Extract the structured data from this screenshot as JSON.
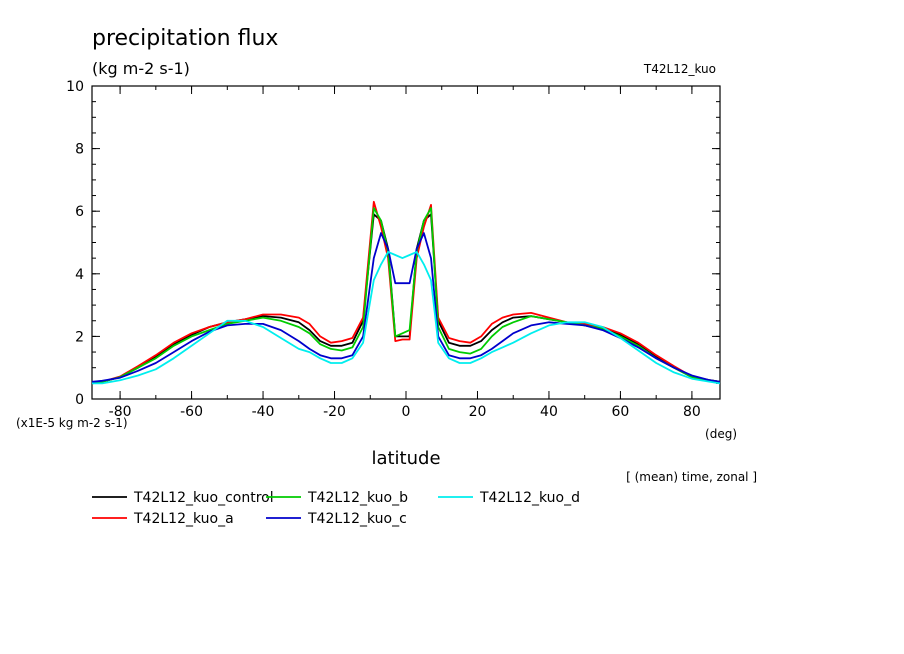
{
  "chart_data": {
    "type": "line",
    "title": "precipitation flux",
    "units": "(kg m-2 s-1)",
    "experiment": "T42L12_kuo",
    "xlabel": "latitude",
    "xunit": "(deg)",
    "ylabel": "(x1E-5 kg m-2 s-1)",
    "note": "[ (mean) time, zonal ]",
    "xlim": [
      -87.86,
      87.86
    ],
    "ylim": [
      0,
      10
    ],
    "x_ticks": [
      -80,
      -60,
      -40,
      -20,
      0,
      20,
      40,
      60,
      80
    ],
    "y_ticks": [
      0,
      2,
      4,
      6,
      8,
      10
    ],
    "grid": false,
    "legend_position": "bottom",
    "x": [
      -87.86,
      -85,
      -80,
      -75,
      -70,
      -65,
      -60,
      -55,
      -50,
      -45,
      -40,
      -35,
      -30,
      -27,
      -24,
      -21,
      -18,
      -15,
      -12,
      -9,
      -7,
      -5,
      -3,
      -1,
      1,
      3,
      5,
      7,
      9,
      12,
      15,
      18,
      21,
      24,
      27,
      30,
      35,
      40,
      45,
      50,
      55,
      60,
      65,
      70,
      75,
      80,
      85,
      87.86
    ],
    "series": [
      {
        "name": "T42L12_kuo_control",
        "color": "#000000",
        "values": [
          0.5,
          0.55,
          0.7,
          1.0,
          1.35,
          1.75,
          2.05,
          2.3,
          2.45,
          2.55,
          2.65,
          2.6,
          2.45,
          2.2,
          1.85,
          1.7,
          1.7,
          1.8,
          2.5,
          5.9,
          5.7,
          4.8,
          2.0,
          2.0,
          2.0,
          4.8,
          5.7,
          5.9,
          2.5,
          1.8,
          1.7,
          1.7,
          1.85,
          2.2,
          2.45,
          2.6,
          2.65,
          2.55,
          2.45,
          2.35,
          2.25,
          2.05,
          1.75,
          1.35,
          1.0,
          0.7,
          0.6,
          0.55
        ]
      },
      {
        "name": "T42L12_kuo_a",
        "color": "#ff0000",
        "values": [
          0.5,
          0.55,
          0.72,
          1.05,
          1.4,
          1.8,
          2.1,
          2.3,
          2.45,
          2.55,
          2.7,
          2.7,
          2.6,
          2.4,
          2.0,
          1.8,
          1.85,
          1.95,
          2.6,
          6.3,
          5.5,
          4.5,
          1.85,
          1.9,
          1.9,
          4.5,
          5.5,
          6.2,
          2.6,
          1.95,
          1.85,
          1.8,
          2.0,
          2.4,
          2.6,
          2.7,
          2.75,
          2.6,
          2.45,
          2.4,
          2.3,
          2.1,
          1.8,
          1.4,
          1.05,
          0.72,
          0.6,
          0.55
        ]
      },
      {
        "name": "T42L12_kuo_b",
        "color": "#00cc00",
        "values": [
          0.5,
          0.55,
          0.7,
          1.0,
          1.3,
          1.7,
          2.0,
          2.2,
          2.4,
          2.5,
          2.6,
          2.5,
          2.3,
          2.1,
          1.75,
          1.6,
          1.55,
          1.65,
          2.3,
          6.1,
          5.7,
          4.7,
          2.0,
          2.1,
          2.2,
          4.7,
          5.7,
          6.1,
          2.3,
          1.6,
          1.5,
          1.45,
          1.6,
          2.0,
          2.3,
          2.45,
          2.65,
          2.55,
          2.45,
          2.35,
          2.25,
          2.0,
          1.7,
          1.3,
          1.0,
          0.7,
          0.6,
          0.55
        ]
      },
      {
        "name": "T42L12_kuo_c",
        "color": "#0000cc",
        "values": [
          0.55,
          0.58,
          0.68,
          0.9,
          1.15,
          1.5,
          1.85,
          2.15,
          2.35,
          2.4,
          2.4,
          2.2,
          1.85,
          1.6,
          1.4,
          1.3,
          1.3,
          1.4,
          2.0,
          4.5,
          5.3,
          4.8,
          3.7,
          3.7,
          3.7,
          4.8,
          5.3,
          4.5,
          2.0,
          1.4,
          1.3,
          1.3,
          1.4,
          1.6,
          1.85,
          2.1,
          2.35,
          2.45,
          2.4,
          2.35,
          2.2,
          1.95,
          1.65,
          1.3,
          1.0,
          0.75,
          0.6,
          0.55
        ]
      },
      {
        "name": "T42L12_kuo_d",
        "color": "#00eeee",
        "values": [
          0.5,
          0.5,
          0.6,
          0.75,
          0.95,
          1.3,
          1.7,
          2.1,
          2.5,
          2.5,
          2.3,
          1.95,
          1.6,
          1.5,
          1.3,
          1.15,
          1.15,
          1.3,
          1.8,
          3.8,
          4.3,
          4.7,
          4.6,
          4.5,
          4.6,
          4.7,
          4.3,
          3.8,
          1.8,
          1.3,
          1.15,
          1.15,
          1.3,
          1.5,
          1.65,
          1.8,
          2.1,
          2.35,
          2.45,
          2.45,
          2.3,
          1.95,
          1.55,
          1.15,
          0.85,
          0.65,
          0.55,
          0.5
        ]
      }
    ]
  }
}
